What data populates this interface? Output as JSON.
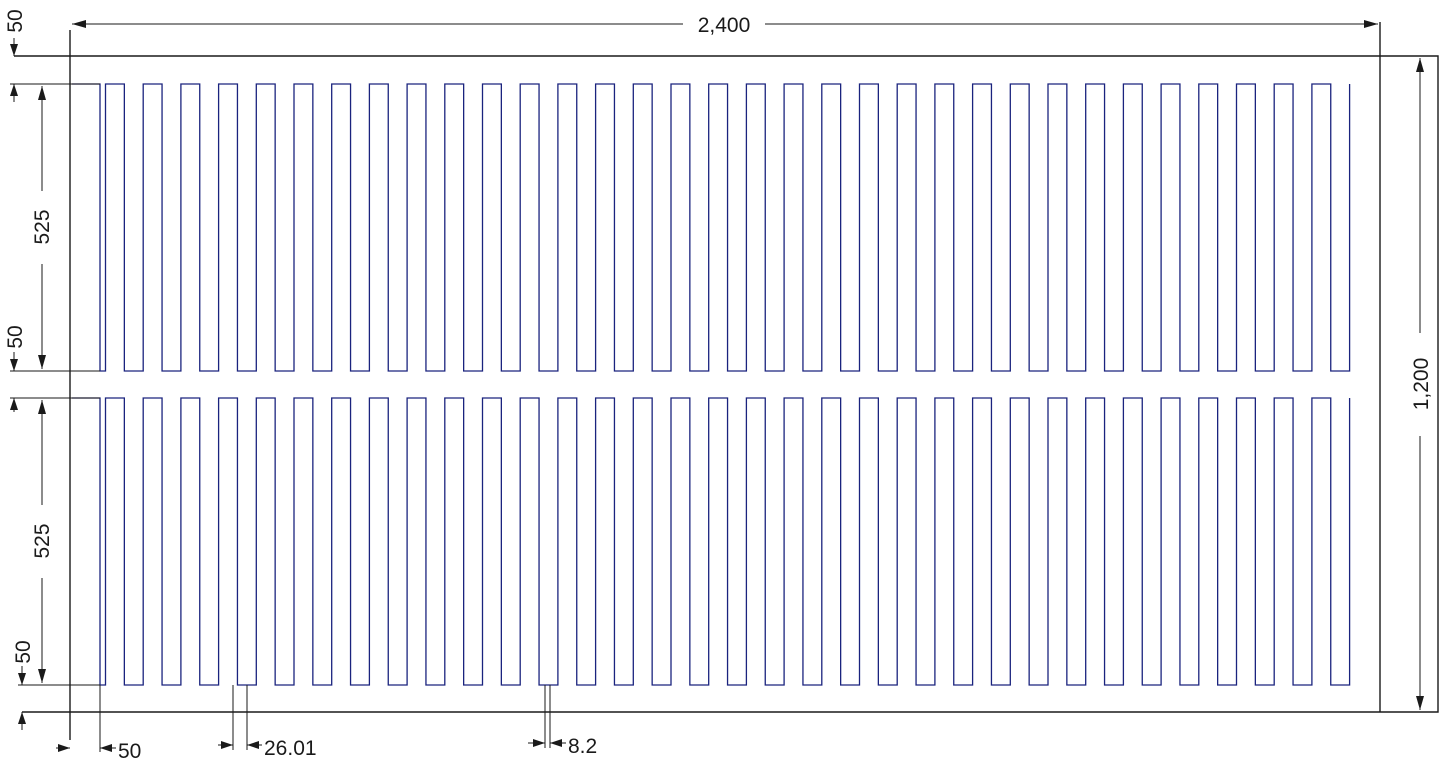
{
  "drawing": {
    "element_color": "#1a237e",
    "line_color": "#1a1a1a",
    "background": "#ffffff",
    "fingers_per_row": 67,
    "rows": 2
  },
  "dimensions": {
    "overall_width": "2,400",
    "overall_height": "1,200",
    "top_margin": "50",
    "upper_row_height": "525",
    "middle_gap": "50",
    "lower_row_height": "525",
    "bottom_margin": "50",
    "left_margin": "50",
    "finger_pitch": "26.01",
    "line_width": "8.2"
  }
}
